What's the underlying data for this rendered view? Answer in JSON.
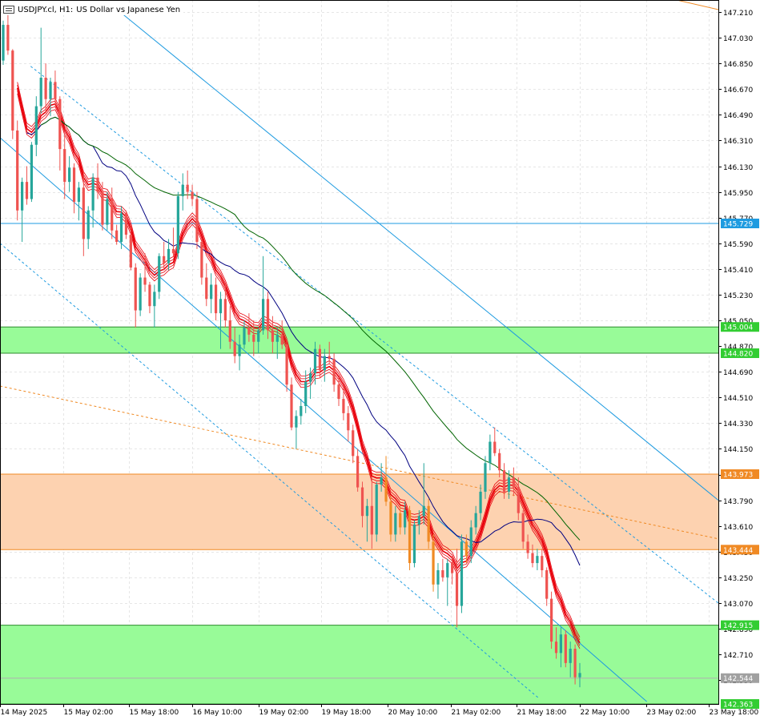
{
  "header": {
    "symbol": "USDJPY.cl, H1:",
    "description": "US Dollar vs Japanese Yen",
    "menu_icon": "menu-icon"
  },
  "colors": {
    "bull": "#26a69a",
    "bear": "#ef5350",
    "bear_zone": "#f08a24",
    "green_zone": "#98fb98",
    "orange_zone": "#fdd2b0",
    "channel": "#1e9be0",
    "ma_red": "#e8000b",
    "ma_blue": "#000080",
    "ma_green": "#006400",
    "orange_dash": "#f08a24"
  },
  "chart_data": {
    "type": "candlestick",
    "title": "USDJPY.cl, H1: US Dollar vs Japanese Yen",
    "ylim": [
      142.363,
      147.21
    ],
    "yticks": [
      "147.210",
      "147.030",
      "146.850",
      "146.670",
      "146.490",
      "146.310",
      "146.130",
      "145.950",
      "145.770",
      "145.590",
      "145.410",
      "145.230",
      "145.050",
      "144.870",
      "144.690",
      "144.510",
      "144.330",
      "144.150",
      "143.970",
      "143.790",
      "143.610",
      "143.430",
      "143.250",
      "143.070",
      "142.890",
      "142.710",
      "142.530"
    ],
    "xticks": [
      {
        "label": "14 May 2025",
        "bar": 0
      },
      {
        "label": "15 May 02:00",
        "bar": 20
      },
      {
        "label": "15 May 18:00",
        "bar": 41
      },
      {
        "label": "16 May 10:00",
        "bar": 61
      },
      {
        "label": "19 May 02:00",
        "bar": 82
      },
      {
        "label": "19 May 18:00",
        "bar": 102
      },
      {
        "label": "20 May 10:00",
        "bar": 123
      },
      {
        "label": "21 May 02:00",
        "bar": 143
      },
      {
        "label": "21 May 18:00",
        "bar": 164
      },
      {
        "label": "22 May 10:00",
        "bar": 184
      },
      {
        "label": "23 May 02:00",
        "bar": 205
      },
      {
        "label": "23 May 18:00",
        "bar": 225
      }
    ],
    "price_labels": [
      {
        "value": 145.729,
        "label": "145.729",
        "bg": "#1e9be0"
      },
      {
        "value": 145.004,
        "label": "145.004",
        "bg": "#32cd32"
      },
      {
        "value": 144.82,
        "label": "144.820",
        "bg": "#32cd32"
      },
      {
        "value": 143.973,
        "label": "143.973",
        "bg": "#f08a24"
      },
      {
        "value": 143.444,
        "label": "143.444",
        "bg": "#f08a24"
      },
      {
        "value": 142.915,
        "label": "142.915",
        "bg": "#32cd32"
      },
      {
        "value": 142.544,
        "label": "142.544",
        "bg": "#a0a0a0"
      },
      {
        "value": 142.363,
        "label": "142.363",
        "bg": "#32cd32"
      }
    ],
    "zones": [
      {
        "name": "green-zone-upper",
        "from": 144.82,
        "to": 145.004,
        "fill": "#98fb98",
        "stroke": "#2e8b2e"
      },
      {
        "name": "orange-zone",
        "from": 143.444,
        "to": 143.973,
        "fill": "#fdd2b0",
        "stroke": "#f08a24"
      },
      {
        "name": "green-zone-lower",
        "from": 142.363,
        "to": 142.915,
        "fill": "#98fb98",
        "stroke": "#2e8b2e"
      }
    ],
    "hlines": [
      {
        "value": 145.729,
        "color": "#1e9be0"
      },
      {
        "value": 142.544,
        "color": "#b0b0b0"
      }
    ],
    "trendlines": [
      {
        "name": "channel-upper-solid",
        "from": [
          47,
          147.21
        ],
        "to": [
          281,
          143.79
        ],
        "dash": false
      },
      {
        "name": "channel-mid-solid",
        "from": [
          0,
          146.33
        ],
        "to": [
          253,
          142.38
        ],
        "dash": false
      },
      {
        "name": "channel-dash-upper",
        "from": [
          12,
          146.83
        ],
        "to": [
          281,
          143.07
        ],
        "dash": true
      },
      {
        "name": "channel-dash-lower",
        "from": [
          0,
          145.59
        ],
        "to": [
          211,
          142.4
        ],
        "dash": true
      }
    ],
    "orange_dashed": {
      "from": [
        0,
        144.59
      ],
      "to": [
        281,
        143.52
      ]
    },
    "ma_start_bar": 0,
    "candles": [
      [
        146.87,
        147.15,
        146.84,
        147.12
      ],
      [
        147.12,
        147.2,
        146.91,
        146.94
      ],
      [
        146.94,
        146.95,
        146.32,
        146.38
      ],
      [
        146.38,
        146.45,
        145.75,
        145.82
      ],
      [
        145.82,
        146.05,
        145.6,
        146.02
      ],
      [
        146.02,
        146.13,
        145.86,
        145.9
      ],
      [
        145.9,
        146.3,
        145.88,
        146.28
      ],
      [
        146.28,
        146.62,
        146.2,
        146.55
      ],
      [
        146.55,
        147.1,
        146.5,
        146.75
      ],
      [
        146.75,
        146.85,
        146.5,
        146.6
      ],
      [
        146.6,
        146.75,
        146.48,
        146.72
      ],
      [
        146.72,
        146.8,
        146.55,
        146.6
      ],
      [
        146.6,
        146.62,
        146.1,
        146.25
      ],
      [
        146.25,
        146.35,
        145.9,
        146.02
      ],
      [
        146.02,
        146.2,
        145.95,
        146.12
      ],
      [
        146.12,
        146.15,
        145.8,
        145.88
      ],
      [
        145.88,
        146.02,
        145.75,
        145.98
      ],
      [
        145.98,
        146.1,
        145.5,
        145.62
      ],
      [
        145.62,
        145.85,
        145.55,
        145.82
      ],
      [
        145.82,
        146.08,
        145.7,
        146.05
      ],
      [
        146.05,
        146.15,
        145.9,
        145.95
      ],
      [
        145.95,
        146.02,
        145.68,
        145.72
      ],
      [
        145.72,
        145.95,
        145.68,
        145.9
      ],
      [
        145.9,
        145.98,
        145.62,
        145.68
      ],
      [
        145.68,
        145.72,
        145.58,
        145.6
      ],
      [
        145.6,
        145.85,
        145.55,
        145.8
      ],
      [
        145.8,
        145.82,
        145.62,
        145.65
      ],
      [
        145.65,
        145.72,
        145.4,
        145.42
      ],
      [
        145.42,
        145.45,
        145.0,
        145.12
      ],
      [
        145.12,
        145.38,
        145.08,
        145.35
      ],
      [
        145.35,
        145.52,
        145.25,
        145.3
      ],
      [
        145.3,
        145.32,
        145.1,
        145.15
      ],
      [
        145.15,
        145.3,
        145.0,
        145.25
      ],
      [
        145.25,
        145.52,
        145.2,
        145.5
      ],
      [
        145.5,
        145.6,
        145.4,
        145.45
      ],
      [
        145.45,
        145.62,
        145.4,
        145.55
      ],
      [
        145.55,
        145.7,
        145.5,
        145.52
      ],
      [
        145.52,
        145.95,
        145.48,
        145.92
      ],
      [
        145.92,
        146.08,
        145.82,
        146.0
      ],
      [
        146.0,
        146.1,
        145.9,
        145.95
      ],
      [
        145.95,
        146.0,
        145.85,
        145.9
      ],
      [
        145.9,
        145.95,
        145.55,
        145.6
      ],
      [
        145.6,
        145.62,
        145.3,
        145.35
      ],
      [
        145.35,
        145.45,
        145.15,
        145.2
      ],
      [
        145.2,
        145.38,
        145.1,
        145.3
      ],
      [
        145.3,
        145.35,
        145.05,
        145.1
      ],
      [
        145.1,
        145.25,
        144.85,
        145.2
      ],
      [
        145.2,
        145.3,
        145.0,
        145.05
      ],
      [
        145.05,
        145.15,
        144.85,
        144.9
      ],
      [
        144.9,
        145.0,
        144.75,
        144.8
      ],
      [
        144.8,
        144.95,
        144.7,
        144.88
      ],
      [
        144.88,
        145.05,
        144.85,
        145.0
      ],
      [
        145.0,
        145.1,
        144.9,
        144.95
      ],
      [
        144.95,
        145.05,
        144.8,
        144.9
      ],
      [
        144.9,
        145.0,
        144.82,
        144.98
      ],
      [
        144.98,
        145.5,
        144.95,
        145.2
      ],
      [
        145.2,
        145.25,
        144.92,
        144.98
      ],
      [
        144.98,
        145.08,
        144.82,
        144.9
      ],
      [
        144.9,
        145.0,
        144.78,
        144.95
      ],
      [
        144.95,
        145.05,
        144.85,
        144.88
      ],
      [
        144.88,
        144.92,
        144.55,
        144.6
      ],
      [
        144.6,
        144.65,
        144.28,
        144.3
      ],
      [
        144.3,
        144.42,
        144.15,
        144.38
      ],
      [
        144.38,
        144.5,
        144.32,
        144.45
      ],
      [
        144.45,
        144.7,
        144.4,
        144.62
      ],
      [
        144.62,
        144.72,
        144.5,
        144.68
      ],
      [
        144.68,
        144.9,
        144.6,
        144.85
      ],
      [
        144.85,
        144.88,
        144.65,
        144.7
      ],
      [
        144.7,
        144.85,
        144.62,
        144.8
      ],
      [
        144.8,
        144.9,
        144.75,
        144.78
      ],
      [
        144.78,
        144.82,
        144.55,
        144.6
      ],
      [
        144.6,
        144.65,
        144.45,
        144.5
      ],
      [
        144.5,
        144.58,
        144.35,
        144.4
      ],
      [
        144.4,
        144.45,
        144.2,
        144.28
      ],
      [
        144.28,
        144.32,
        144.05,
        144.1
      ],
      [
        144.1,
        144.15,
        143.85,
        143.88
      ],
      [
        143.88,
        143.92,
        143.6,
        143.68
      ],
      [
        143.68,
        143.8,
        143.5,
        143.75
      ],
      [
        143.75,
        143.95,
        143.45,
        143.55
      ],
      [
        143.55,
        143.92,
        143.5,
        143.9
      ],
      [
        143.9,
        144.05,
        143.85,
        143.95
      ],
      [
        143.95,
        144.1,
        143.75,
        143.78
      ],
      [
        143.78,
        143.82,
        143.5,
        143.55
      ],
      [
        143.55,
        143.75,
        143.5,
        143.7
      ],
      [
        143.7,
        143.75,
        143.55,
        143.6
      ],
      [
        143.6,
        143.78,
        143.55,
        143.72
      ],
      [
        143.72,
        143.75,
        143.3,
        143.35
      ],
      [
        143.35,
        143.65,
        143.32,
        143.62
      ],
      [
        143.62,
        143.72,
        143.55,
        143.68
      ],
      [
        143.68,
        144.05,
        143.62,
        143.75
      ],
      [
        143.75,
        143.8,
        143.45,
        143.5
      ],
      [
        143.5,
        143.55,
        143.15,
        143.2
      ],
      [
        143.2,
        143.35,
        143.1,
        143.3
      ],
      [
        143.3,
        143.38,
        143.22,
        143.25
      ],
      [
        143.25,
        143.38,
        143.05,
        143.35
      ],
      [
        143.35,
        143.4,
        143.2,
        143.28
      ],
      [
        143.28,
        143.45,
        142.9,
        143.05
      ],
      [
        143.05,
        143.55,
        143.0,
        143.5
      ],
      [
        143.5,
        143.55,
        143.35,
        143.4
      ],
      [
        143.4,
        143.65,
        143.35,
        143.6
      ],
      [
        143.6,
        143.75,
        143.55,
        143.7
      ],
      [
        143.7,
        143.9,
        143.65,
        143.85
      ],
      [
        143.85,
        144.1,
        143.8,
        144.05
      ],
      [
        144.05,
        144.25,
        144.0,
        144.2
      ],
      [
        144.2,
        144.3,
        144.1,
        144.12
      ],
      [
        144.12,
        144.15,
        143.95,
        144.0
      ],
      [
        144.0,
        144.05,
        143.8,
        143.85
      ],
      [
        143.85,
        144.0,
        143.8,
        143.95
      ],
      [
        143.95,
        144.02,
        143.82,
        143.88
      ],
      [
        143.88,
        143.95,
        143.65,
        143.7
      ],
      [
        143.7,
        143.72,
        143.45,
        143.5
      ],
      [
        143.5,
        143.55,
        143.38,
        143.42
      ],
      [
        143.42,
        143.48,
        143.32,
        143.35
      ],
      [
        143.35,
        143.45,
        143.3,
        143.4
      ],
      [
        143.4,
        143.45,
        143.25,
        143.3
      ],
      [
        143.3,
        143.32,
        143.05,
        143.1
      ],
      [
        143.1,
        143.15,
        142.75,
        142.8
      ],
      [
        142.8,
        142.9,
        142.68,
        142.72
      ],
      [
        142.72,
        142.9,
        142.62,
        142.85
      ],
      [
        142.85,
        142.88,
        142.62,
        142.65
      ],
      [
        142.65,
        142.8,
        142.55,
        142.75
      ],
      [
        142.75,
        142.78,
        142.5,
        142.55
      ],
      [
        142.55,
        142.65,
        142.48,
        142.58
      ]
    ]
  }
}
